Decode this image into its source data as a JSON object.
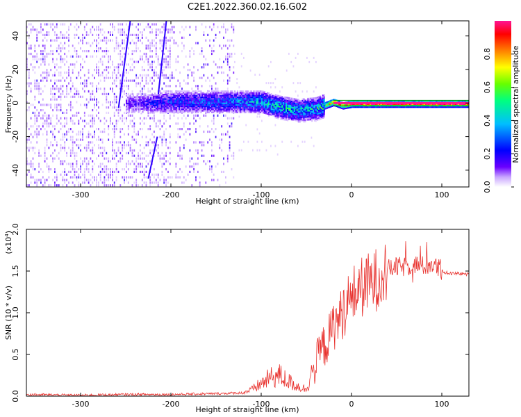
{
  "title": "C2E1.2022.360.02.16.G02",
  "chart_data": [
    {
      "type": "heatmap",
      "title": "C2E1.2022.360.02.16.G02",
      "xlabel": "Height of straight line (km)",
      "ylabel": "Frequency (Hz)",
      "xlim": [
        -360,
        130
      ],
      "ylim": [
        -50,
        49
      ],
      "x_ticks": [
        -300,
        -200,
        -100,
        0,
        100
      ],
      "y_ticks": [
        -40,
        -20,
        0,
        20,
        40
      ],
      "colorbar": {
        "label": "Normalized spectral amplitude",
        "range": [
          0.0,
          1.0
        ],
        "ticks": [
          "0.0",
          "0.2",
          "0.4",
          "0.6",
          "0.8"
        ],
        "colors": [
          "#ffffff",
          "#6a00ff",
          "#0000ff",
          "#00bfff",
          "#00ff80",
          "#66ff00",
          "#ffff00",
          "#ff8000",
          "#ff0000",
          "#ff1493"
        ]
      },
      "ridge": {
        "description_points_x": [
          -250,
          -200,
          -150,
          -100,
          -80,
          -60,
          -40,
          -25,
          -20,
          -10,
          0,
          50,
          130
        ],
        "description_points_y": [
          0,
          1,
          1,
          1,
          -2,
          -4,
          -3,
          0,
          1,
          -1,
          0,
          0,
          0
        ],
        "peak_amplitude": [
          0.15,
          0.3,
          0.35,
          0.45,
          0.55,
          0.5,
          0.5,
          0.8,
          0.9,
          0.8,
          1.0,
          1.0,
          1.0
        ]
      },
      "noise_region_x": [
        -360,
        -130
      ],
      "grid": false
    },
    {
      "type": "line",
      "xlabel": "Height of straight line (km)",
      "ylabel": "SNR (10 * v/v)",
      "y_multiplier": "(x10",
      "y_multiplier_exp": "4",
      "xlim": [
        -360,
        130
      ],
      "ylim": [
        0.0,
        2.0
      ],
      "x_ticks": [
        -300,
        -200,
        -100,
        0,
        100
      ],
      "y_ticks": [
        "0.0",
        "0.5",
        "1.0",
        "1.5",
        "2.0"
      ],
      "series": [
        {
          "color": "#e8322e",
          "x": [
            -360,
            -300,
            -250,
            -200,
            -150,
            -120,
            -110,
            -100,
            -90,
            -80,
            -70,
            -60,
            -50,
            -45,
            -40,
            -35,
            -30,
            -25,
            -20,
            -15,
            -10,
            -5,
            0,
            10,
            20,
            30,
            40,
            50,
            60,
            70,
            80,
            90,
            100,
            105,
            110,
            120,
            130
          ],
          "y": [
            0.02,
            0.01,
            0.02,
            0.02,
            0.03,
            0.04,
            0.08,
            0.15,
            0.22,
            0.25,
            0.18,
            0.12,
            0.08,
            0.25,
            0.35,
            0.55,
            0.6,
            0.7,
            0.85,
            0.9,
            1.0,
            1.1,
            1.2,
            1.3,
            1.35,
            1.42,
            1.52,
            1.55,
            1.55,
            1.58,
            1.56,
            1.58,
            1.5,
            1.48,
            1.47,
            1.47,
            1.46
          ]
        }
      ],
      "grid": false
    }
  ]
}
